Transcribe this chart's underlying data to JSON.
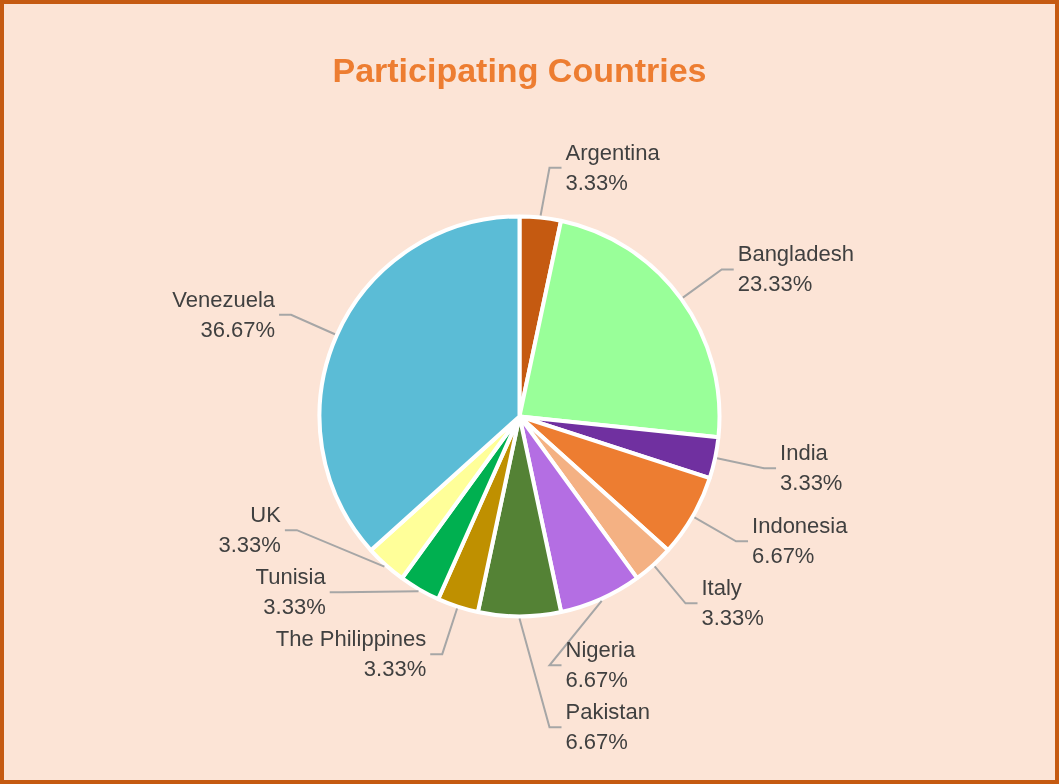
{
  "chart_data": {
    "type": "pie",
    "title": "Participating Countries",
    "categories": [
      "Argentina",
      "Bangladesh",
      "India",
      "Indonesia",
      "Italy",
      "Nigeria",
      "Pakistan",
      "The Philippines",
      "Tunisia",
      "UK",
      "Venezuela"
    ],
    "values": [
      3.33,
      23.33,
      3.33,
      6.67,
      3.33,
      6.67,
      6.67,
      3.33,
      3.33,
      3.33,
      36.67
    ],
    "value_labels": [
      "3.33%",
      "23.33%",
      "3.33%",
      "6.67%",
      "3.33%",
      "6.67%",
      "6.67%",
      "3.33%",
      "3.33%",
      "3.33%",
      "36.67%"
    ],
    "colors": [
      "#c55a11",
      "#99ff99",
      "#7030a0",
      "#ed7d31",
      "#f4b183",
      "#b46ee3",
      "#548235",
      "#bf9000",
      "#00b050",
      "#ffff99",
      "#5bbcd6"
    ],
    "legend": false
  }
}
